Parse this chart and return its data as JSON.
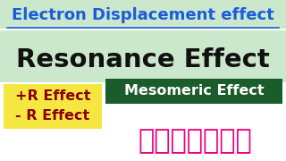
{
  "background_color": "#ffffff",
  "top_banner_color": "#cce8cc",
  "title_text": "Electron Displacement effect",
  "title_color": "#1a5cdc",
  "resonance_text": "Resonance Effect",
  "resonance_color": "#111111",
  "yellow_box_color": "#f5e642",
  "yellow_box_text1": "+R Effect",
  "yellow_box_text2": "- R Effect",
  "yellow_text_color": "#8b0000",
  "green_box_color": "#1a5c2a",
  "green_box_text": "Mesomeric Effect",
  "green_text_color": "#ffffff",
  "tamil_text": "தமிழில்",
  "tamil_text_color": "#e8007a"
}
